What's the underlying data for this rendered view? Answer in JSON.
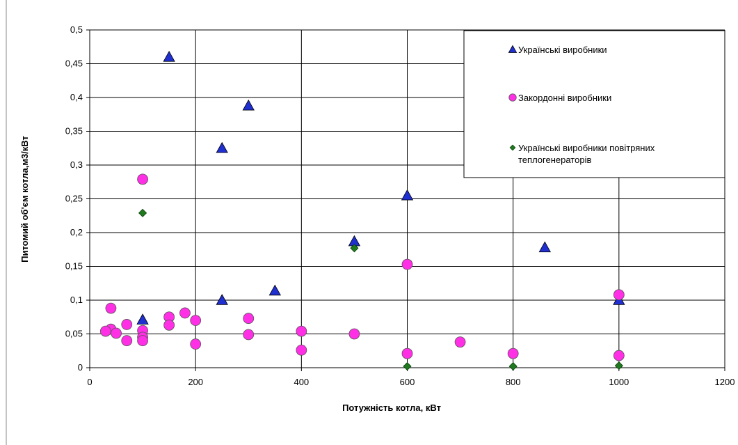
{
  "chart_data": {
    "type": "scatter",
    "xlabel": "Потужність котла, кВт",
    "ylabel": "Питомий об'єм котла,м3/кВт",
    "xlim": [
      0,
      1200
    ],
    "ylim": [
      0,
      0.5
    ],
    "x_ticks": [
      "0",
      "200",
      "400",
      "600",
      "800",
      "1000",
      "1200"
    ],
    "y_ticks": [
      "0",
      "0,05",
      "0,1",
      "0,15",
      "0,2",
      "0,25",
      "0,3",
      "0,35",
      "0,4",
      "0,45",
      "0,5"
    ],
    "grid": true,
    "legend_position": "top-right",
    "series": [
      {
        "name": "Українські виробники",
        "marker": "triangle",
        "color": "#1f2fd0",
        "points": [
          [
            150,
            0.46
          ],
          [
            300,
            0.388
          ],
          [
            250,
            0.325
          ],
          [
            600,
            0.255
          ],
          [
            500,
            0.187
          ],
          [
            860,
            0.178
          ],
          [
            350,
            0.114
          ],
          [
            250,
            0.1
          ],
          [
            100,
            0.071
          ],
          [
            1000,
            0.1
          ]
        ]
      },
      {
        "name": "Закордонні виробники",
        "marker": "circle",
        "color": "#ff2fe6",
        "points": [
          [
            100,
            0.279
          ],
          [
            600,
            0.153
          ],
          [
            1000,
            0.108
          ],
          [
            40,
            0.088
          ],
          [
            180,
            0.081
          ],
          [
            150,
            0.075
          ],
          [
            300,
            0.073
          ],
          [
            200,
            0.07
          ],
          [
            70,
            0.064
          ],
          [
            150,
            0.063
          ],
          [
            40,
            0.057
          ],
          [
            30,
            0.054
          ],
          [
            50,
            0.051
          ],
          [
            100,
            0.055
          ],
          [
            400,
            0.054
          ],
          [
            100,
            0.045
          ],
          [
            300,
            0.049
          ],
          [
            500,
            0.05
          ],
          [
            70,
            0.04
          ],
          [
            100,
            0.04
          ],
          [
            700,
            0.038
          ],
          [
            200,
            0.035
          ],
          [
            400,
            0.026
          ],
          [
            600,
            0.021
          ],
          [
            800,
            0.021
          ],
          [
            1000,
            0.018
          ]
        ]
      },
      {
        "name": "Українські виробники повітряних теплогенераторів",
        "marker": "diamond",
        "color": "#1f7a1f",
        "points": [
          [
            100,
            0.229
          ],
          [
            500,
            0.177
          ],
          [
            600,
            0.002
          ],
          [
            800,
            0.002
          ],
          [
            1000,
            0.003
          ]
        ]
      }
    ],
    "legend_lines": [
      [
        "Українські виробники"
      ],
      [
        "Закордонні виробники"
      ],
      [
        "Українські виробники повітряних",
        "теплогенераторів"
      ]
    ]
  }
}
